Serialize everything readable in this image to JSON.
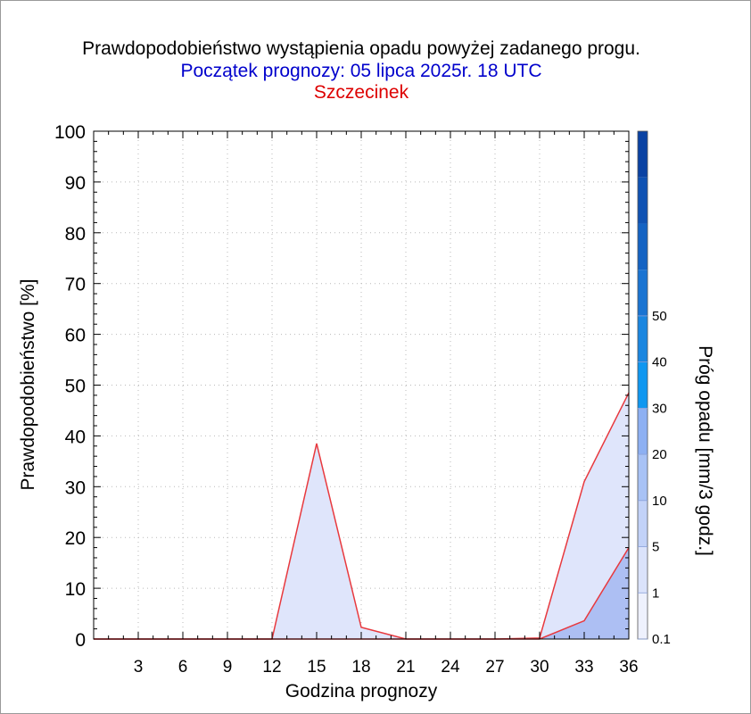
{
  "chart_data": {
    "type": "area",
    "title": "Prawdopodobieństwo wystąpienia opadu powyżej zadanego progu.",
    "subtitle": "Początek prognozy: 05 lipca 2025r. 18 UTC",
    "location": "Szczecinek",
    "xlabel": "Godzina prognozy",
    "ylabel": "Prawdopodobieństwo [%]",
    "xlim": [
      0,
      36
    ],
    "ylim": [
      0,
      100
    ],
    "xticks": [
      3,
      6,
      9,
      12,
      15,
      18,
      21,
      24,
      27,
      30,
      33,
      36
    ],
    "yticks": [
      0,
      10,
      20,
      30,
      40,
      50,
      60,
      70,
      80,
      90,
      100
    ],
    "grid": true,
    "x": [
      0,
      3,
      6,
      9,
      12,
      15,
      18,
      21,
      24,
      27,
      30,
      33,
      36
    ],
    "series": [
      {
        "threshold": 0.1,
        "color": "#dfe5fb",
        "values": [
          0,
          0,
          0,
          0,
          0,
          38.5,
          2.3,
          0,
          0,
          0,
          0.2,
          31,
          48.5
        ]
      },
      {
        "threshold": 1,
        "color": "#adbff3",
        "values": [
          0,
          0,
          0,
          0,
          0,
          0,
          0,
          0,
          0,
          0,
          0,
          3.6,
          18
        ]
      }
    ],
    "colorbar": {
      "label": "Próg opadu [mm/3 godz.]",
      "ticks": [
        "0.1",
        "1",
        "5",
        "10",
        "20",
        "30",
        "40",
        "50"
      ],
      "colors": [
        "#eef1fd",
        "#dbe3fb",
        "#c2d2f8",
        "#a8c2f5",
        "#8db0f2",
        "#0f97f0",
        "#1a86e0",
        "#1a74d2",
        "#1463c3",
        "#0f52b3",
        "#0a42a3"
      ]
    }
  }
}
